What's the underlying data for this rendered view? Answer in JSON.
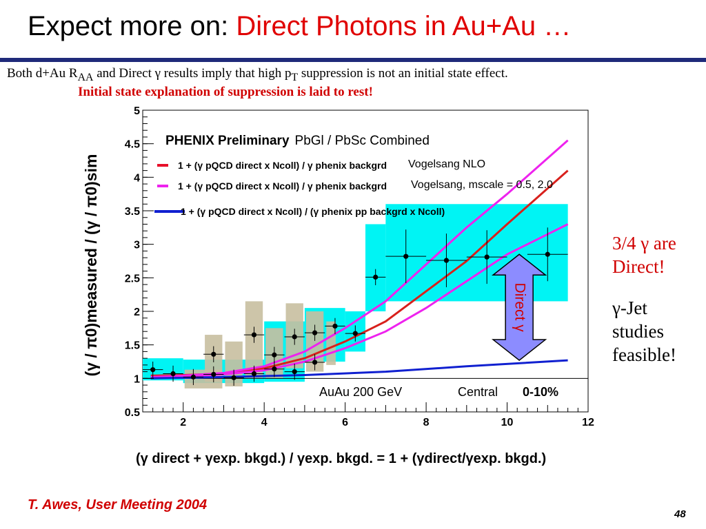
{
  "slide": {
    "title_prefix": "Expect more on: ",
    "title_accent": "Direct Photons in Au+Au …",
    "line1": "Both d+Au R",
    "line1_sub": "AA",
    "line1_mid": " and Direct γ results imply that high p",
    "line1_sub2": "T",
    "line1_end": " suppression is not an initial state effect.",
    "line2": "Initial state explanation of suppression is laid to rest!",
    "side_line1": "3/4 γ are",
    "side_line2": "Direct!",
    "side_line3": "γ-Jet",
    "side_line4": "studies",
    "side_line5": "feasible!",
    "footer_left": "T. Awes, User Meeting 2004",
    "page_number": "48"
  },
  "chart_data": {
    "type": "scatter",
    "xlim": [
      1,
      12
    ],
    "ylim": [
      0.5,
      5
    ],
    "x_ticks": [
      "2",
      "4",
      "6",
      "8",
      "10",
      "12"
    ],
    "y_ticks": [
      "0.5",
      "1",
      "1.5",
      "2",
      "2.5",
      "3",
      "3.5",
      "4",
      "4.5",
      "5"
    ],
    "header_bold": "PHENIX Preliminary",
    "header_rest": "PbGl / PbSc Combined",
    "legend": [
      {
        "label": "1 + (γ pQCD direct x Ncoll) / γ phenix backgrd",
        "note": "Vogelsang NLO",
        "color": "#e8102a"
      },
      {
        "label": "1 + (γ pQCD direct x Ncoll) / γ phenix backgrd",
        "note": "Vogelsang, mscale = 0.5, 2.0",
        "color": "#ee22ee"
      },
      {
        "label": "1 + (γ pQCD direct x Ncoll) / (γ phenix pp backgrd x Ncoll)",
        "note": "",
        "color": "#1020d0"
      }
    ],
    "annotation_energy": "AuAu 200 GeV",
    "annotation_central": "Central",
    "annotation_centrality": "0-10%",
    "arrow_label": "Direct γ",
    "x_formula": "(γ direct + γexp. bkgd.) / γexp. bkgd.   =  1 + (γdirect/γexp. bkgd.)",
    "y_label": "(γ / π0)measured / (γ / π0)sim",
    "points": [
      {
        "x": 1.25,
        "y": 1.13
      },
      {
        "x": 1.75,
        "y": 1.07
      },
      {
        "x": 2.25,
        "y": 1.02
      },
      {
        "x": 2.75,
        "y": 1.06
      },
      {
        "x": 3.25,
        "y": 1.01
      },
      {
        "x": 3.75,
        "y": 1.07
      },
      {
        "x": 4.25,
        "y": 1.14
      },
      {
        "x": 4.75,
        "y": 1.1
      },
      {
        "x": 2.75,
        "y": 1.36
      },
      {
        "x": 3.75,
        "y": 1.65
      },
      {
        "x": 4.25,
        "y": 1.35
      },
      {
        "x": 4.75,
        "y": 1.62
      },
      {
        "x": 5.25,
        "y": 1.68
      },
      {
        "x": 5.75,
        "y": 1.78
      },
      {
        "x": 5.25,
        "y": 1.24
      },
      {
        "x": 6.25,
        "y": 1.67
      },
      {
        "x": 6.75,
        "y": 2.51
      },
      {
        "x": 7.5,
        "y": 2.82
      },
      {
        "x": 8.5,
        "y": 2.76
      },
      {
        "x": 9.5,
        "y": 2.81
      },
      {
        "x": 11.0,
        "y": 2.85
      }
    ],
    "systematic_bands": [
      {
        "x0": 1.0,
        "x1": 2.0,
        "y0": 0.97,
        "y1": 1.3,
        "color": "cyan"
      },
      {
        "x0": 2.0,
        "x1": 4.0,
        "y0": 0.93,
        "y1": 1.28,
        "color": "cyan"
      },
      {
        "x0": 4.0,
        "x1": 5.0,
        "y0": 0.95,
        "y1": 1.85,
        "color": "cyan"
      },
      {
        "x0": 5.0,
        "x1": 6.0,
        "y0": 1.25,
        "y1": 2.05,
        "color": "cyan"
      },
      {
        "x0": 6.0,
        "x1": 6.5,
        "y0": 1.4,
        "y1": 2.0,
        "color": "cyan"
      },
      {
        "x0": 6.5,
        "x1": 7.0,
        "y0": 2.0,
        "y1": 3.3,
        "color": "cyan"
      },
      {
        "x0": 7.0,
        "x1": 11.5,
        "y0": 2.15,
        "y1": 3.6,
        "color": "cyan"
      },
      {
        "x0": 2.0,
        "x1": 3.0,
        "y0": 0.85,
        "y1": 1.13,
        "color": "tan"
      },
      {
        "x0": 2.5,
        "x1": 3.0,
        "y0": 0.95,
        "y1": 1.65,
        "color": "tan"
      },
      {
        "x0": 3.0,
        "x1": 3.5,
        "y0": 0.88,
        "y1": 1.55,
        "color": "tan"
      },
      {
        "x0": 3.5,
        "x1": 4.0,
        "y0": 1.0,
        "y1": 2.15,
        "color": "tan"
      },
      {
        "x0": 4.0,
        "x1": 4.5,
        "y0": 1.0,
        "y1": 1.75,
        "color": "tan"
      },
      {
        "x0": 4.5,
        "x1": 5.0,
        "y0": 1.15,
        "y1": 2.12,
        "color": "tan"
      },
      {
        "x0": 5.0,
        "x1": 5.5,
        "y0": 1.1,
        "y1": 2.0,
        "color": "tan"
      },
      {
        "x0": 5.5,
        "x1": 5.8,
        "y0": 1.2,
        "y1": 1.85,
        "color": "tan"
      }
    ],
    "curves": {
      "nlo": [
        [
          1.2,
          1.04
        ],
        [
          2,
          1.05
        ],
        [
          3,
          1.07
        ],
        [
          4,
          1.15
        ],
        [
          5,
          1.3
        ],
        [
          6,
          1.55
        ],
        [
          7,
          1.85
        ],
        [
          8,
          2.3
        ],
        [
          9,
          2.75
        ],
        [
          10,
          3.3
        ],
        [
          11.5,
          4.1
        ]
      ],
      "scale_high": [
        [
          1.2,
          1.02
        ],
        [
          2,
          1.04
        ],
        [
          3,
          1.08
        ],
        [
          4,
          1.18
        ],
        [
          5,
          1.4
        ],
        [
          6,
          1.75
        ],
        [
          7,
          2.15
        ],
        [
          8,
          2.7
        ],
        [
          9,
          3.25
        ],
        [
          10,
          3.75
        ],
        [
          11.5,
          4.55
        ]
      ],
      "scale_low": [
        [
          1.2,
          1.02
        ],
        [
          2,
          1.03
        ],
        [
          3,
          1.06
        ],
        [
          4,
          1.12
        ],
        [
          5,
          1.25
        ],
        [
          6,
          1.45
        ],
        [
          7,
          1.7
        ],
        [
          8,
          2.05
        ],
        [
          9,
          2.45
        ],
        [
          10,
          2.85
        ],
        [
          11.5,
          3.3
        ]
      ],
      "pp": [
        [
          1.2,
          1.0
        ],
        [
          3,
          1.02
        ],
        [
          5,
          1.05
        ],
        [
          7,
          1.1
        ],
        [
          9,
          1.18
        ],
        [
          11.5,
          1.27
        ]
      ]
    },
    "unity_line": 1.0,
    "arrow_range": [
      1.27,
      2.85
    ],
    "arrow_x": 10.3
  }
}
